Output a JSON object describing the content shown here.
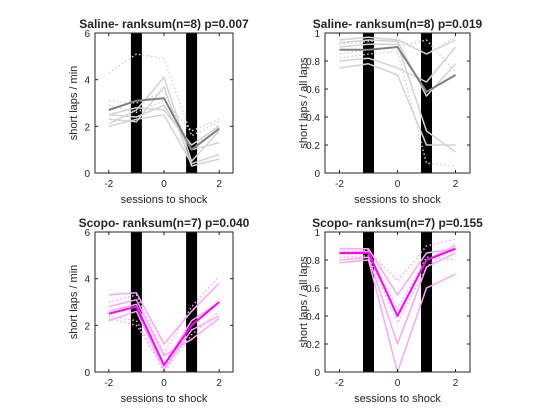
{
  "chart_data": [
    {
      "type": "line",
      "title": "Saline- ranksum(n=8) p=0.007",
      "xlabel": "sessions to shock",
      "ylabel": "short laps / min",
      "xlim": [
        -2.5,
        2.5
      ],
      "ylim": [
        0,
        6
      ],
      "xticks": [
        -2,
        0,
        2
      ],
      "yticks": [
        0,
        2,
        4,
        6
      ],
      "xtick_labels": [
        "-2",
        "0",
        "2"
      ],
      "ytick_labels": [
        "0",
        "2",
        "4",
        "6"
      ],
      "x": [
        -2,
        -1,
        0,
        1,
        2
      ],
      "shock_bars": [
        -1,
        1
      ],
      "individual_color": "#d3d3d3",
      "mean_color": "#808080",
      "series": [
        {
          "values": [
            2.1,
            2.7,
            4.1,
            0.5,
            1.8
          ],
          "style": "solid"
        },
        {
          "values": [
            2.5,
            2.4,
            2.9,
            1.0,
            1.3
          ],
          "style": "solid"
        },
        {
          "values": [
            2.3,
            2.2,
            3.7,
            0.3,
            0.6
          ],
          "style": "solid"
        },
        {
          "values": [
            2.0,
            2.3,
            2.5,
            0.4,
            0.8
          ],
          "style": "solid"
        },
        {
          "values": [
            2.5,
            2.8,
            2.7,
            1.2,
            2.0
          ],
          "style": "solid"
        },
        {
          "values": [
            4.3,
            5.1,
            4.9,
            1.6,
            2.2
          ],
          "style": "dotted"
        },
        {
          "values": [
            3.1,
            3.0,
            3.5,
            1.0,
            2.1
          ],
          "style": "dotted"
        },
        {
          "values": [
            2.9,
            2.6,
            3.1,
            1.8,
            2.3
          ],
          "style": "dotted"
        },
        {
          "values": [
            2.7,
            3.1,
            3.2,
            1.0,
            1.9
          ],
          "style": "mean"
        }
      ]
    },
    {
      "type": "line",
      "title": "Saline- ranksum(n=8) p=0.019",
      "xlabel": "sessions to shock",
      "ylabel": "short laps / all laps",
      "xlim": [
        -2.5,
        2.5
      ],
      "ylim": [
        0,
        1
      ],
      "xticks": [
        -2,
        0,
        2
      ],
      "yticks": [
        0,
        0.2,
        0.4,
        0.6,
        0.8,
        1
      ],
      "xtick_labels": [
        "-2",
        "0",
        "2"
      ],
      "ytick_labels": [
        "0",
        "0.2",
        "0.4",
        "0.6",
        "0.8",
        "1"
      ],
      "x": [
        -2,
        -1,
        0,
        1,
        2
      ],
      "shock_bars": [
        -1,
        1
      ],
      "individual_color": "#d3d3d3",
      "mean_color": "#808080",
      "series": [
        {
          "values": [
            0.93,
            0.95,
            0.94,
            0.55,
            0.78
          ],
          "style": "solid"
        },
        {
          "values": [
            0.9,
            0.92,
            0.92,
            0.3,
            0.15
          ],
          "style": "solid"
        },
        {
          "values": [
            0.8,
            0.82,
            0.75,
            0.65,
            0.9
          ],
          "style": "solid"
        },
        {
          "values": [
            0.75,
            0.78,
            0.7,
            0.2,
            0.2
          ],
          "style": "solid"
        },
        {
          "values": [
            0.95,
            0.97,
            0.95,
            0.85,
            0.95
          ],
          "style": "solid"
        },
        {
          "values": [
            0.85,
            0.88,
            0.9,
            0.95,
            0.72
          ],
          "style": "dotted"
        },
        {
          "values": [
            0.82,
            0.85,
            0.87,
            0.07,
            0.05
          ],
          "style": "dotted"
        },
        {
          "values": [
            0.92,
            0.94,
            0.96,
            0.85,
            0.97
          ],
          "style": "dotted"
        },
        {
          "values": [
            0.88,
            0.88,
            0.9,
            0.58,
            0.7
          ],
          "style": "mean"
        }
      ]
    },
    {
      "type": "line",
      "title": "Scopo- ranksum(n=7) p=0.040",
      "xlabel": "sessions to shock",
      "ylabel": "short laps / min",
      "xlim": [
        -2.5,
        2.5
      ],
      "ylim": [
        0,
        6
      ],
      "xticks": [
        -2,
        0,
        2
      ],
      "yticks": [
        0,
        2,
        4,
        6
      ],
      "xtick_labels": [
        "-2",
        "0",
        "2"
      ],
      "ytick_labels": [
        "0",
        "2",
        "4",
        "6"
      ],
      "x": [
        -2,
        -1,
        0,
        1,
        2
      ],
      "shock_bars": [
        -1,
        1
      ],
      "individual_color": "#f8a8f8",
      "mean_color": "#ff00ff",
      "series": [
        {
          "values": [
            2.6,
            2.9,
            0.3,
            2.2,
            3.0
          ],
          "style": "solid"
        },
        {
          "values": [
            2.2,
            2.6,
            0.1,
            1.8,
            2.4
          ],
          "style": "solid"
        },
        {
          "values": [
            3.3,
            3.4,
            1.2,
            2.6,
            3.8
          ],
          "style": "solid"
        },
        {
          "values": [
            2.8,
            3.1,
            0.7,
            1.4,
            2.3
          ],
          "style": "solid"
        },
        {
          "values": [
            2.3,
            2.0,
            0.2,
            2.0,
            3.0
          ],
          "style": "dotted"
        },
        {
          "values": [
            3.0,
            3.3,
            0.8,
            2.8,
            4.1
          ],
          "style": "dotted"
        },
        {
          "values": [
            2.4,
            2.2,
            0.0,
            1.6,
            2.6
          ],
          "style": "dotted"
        },
        {
          "values": [
            2.5,
            2.8,
            0.3,
            2.0,
            3.0
          ],
          "style": "mean"
        }
      ]
    },
    {
      "type": "line",
      "title": "Scopo- ranksum(n=7) p=0.155",
      "xlabel": "sessions to shock",
      "ylabel": "short laps / all laps",
      "xlim": [
        -2.5,
        2.5
      ],
      "ylim": [
        0,
        1
      ],
      "xticks": [
        -2,
        0,
        2
      ],
      "yticks": [
        0,
        0.2,
        0.4,
        0.6,
        0.8,
        1
      ],
      "xtick_labels": [
        "-2",
        "0",
        "2"
      ],
      "ytick_labels": [
        "0",
        "0.2",
        "0.4",
        "0.6",
        "0.8",
        "1"
      ],
      "x": [
        -2,
        -1,
        0,
        1,
        2
      ],
      "shock_bars": [
        -1,
        1
      ],
      "individual_color": "#f8a8f8",
      "mean_color": "#ff00ff",
      "series": [
        {
          "values": [
            0.85,
            0.86,
            0.4,
            0.8,
            0.9
          ],
          "style": "solid"
        },
        {
          "values": [
            0.8,
            0.82,
            0.2,
            0.75,
            0.85
          ],
          "style": "solid"
        },
        {
          "values": [
            0.78,
            0.8,
            0.0,
            0.6,
            0.7
          ],
          "style": "solid"
        },
        {
          "values": [
            0.88,
            0.88,
            0.55,
            0.85,
            0.88
          ],
          "style": "solid"
        },
        {
          "values": [
            0.86,
            0.87,
            0.65,
            0.9,
            0.95
          ],
          "style": "dotted"
        },
        {
          "values": [
            0.84,
            0.85,
            0.45,
            0.82,
            0.8
          ],
          "style": "dotted"
        },
        {
          "values": [
            0.82,
            0.83,
            0.35,
            0.75,
            0.92
          ],
          "style": "dotted"
        },
        {
          "values": [
            0.85,
            0.85,
            0.4,
            0.8,
            0.88
          ],
          "style": "mean"
        }
      ]
    }
  ]
}
